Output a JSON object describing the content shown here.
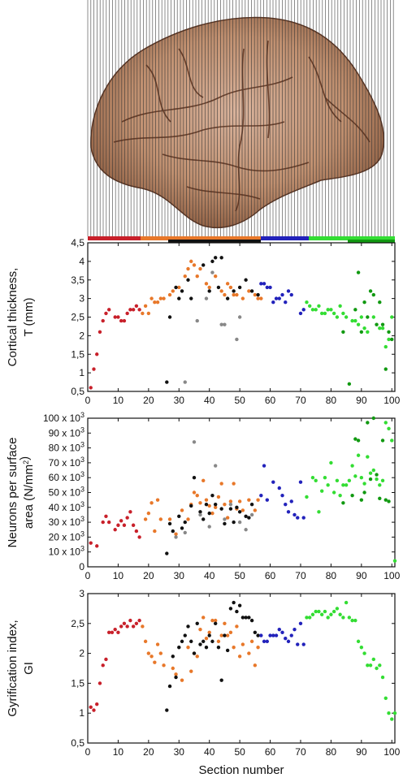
{
  "figure": {
    "image_caption": "Lateral view of a human brain hemisphere sectioned by vertical lines",
    "region_bar_colors": [
      "#c8202a",
      "#e8782a",
      "#111111",
      "#2222bb",
      "#33dd33",
      "#119911"
    ]
  },
  "chart_data": [
    {
      "type": "scatter",
      "ylabel": "Cortical thickness,\nT (mm)",
      "xlabel": "",
      "xlim": [
        0,
        101
      ],
      "ylim": [
        0.5,
        4.5
      ],
      "xticks": [
        "0",
        "10",
        "20",
        "30",
        "40",
        "50",
        "60",
        "70",
        "80",
        "90",
        "100"
      ],
      "yticks": [
        "0,5",
        "1",
        "1,5",
        "2",
        "2,5",
        "3",
        "3,5",
        "4",
        "4,5"
      ],
      "series": [
        {
          "color": "#c8202a",
          "x": [
            1,
            2,
            3,
            4,
            5,
            6,
            7,
            9,
            10,
            11,
            12,
            13,
            14,
            15,
            16,
            17
          ],
          "y": [
            0.6,
            1.1,
            1.5,
            2.1,
            2.4,
            2.6,
            2.7,
            2.5,
            2.5,
            2.4,
            2.4,
            2.6,
            2.7,
            2.7,
            2.8,
            2.7
          ]
        },
        {
          "color": "#e8782a",
          "x": [
            18,
            19,
            20,
            21,
            22,
            23,
            24,
            25,
            27,
            28,
            30,
            32,
            33,
            34,
            35,
            36,
            37,
            39,
            40,
            42,
            44,
            45,
            46,
            47,
            48,
            49,
            51,
            53,
            55,
            56,
            57
          ],
          "y": [
            2.6,
            2.8,
            2.6,
            3.0,
            2.9,
            2.9,
            3.0,
            3.0,
            3.1,
            3.2,
            3.3,
            3.6,
            3.8,
            4.0,
            3.9,
            3.6,
            3.8,
            3.4,
            3.3,
            3.6,
            3.2,
            3.1,
            3.4,
            3.3,
            3.1,
            3.1,
            3.0,
            3.2,
            3.1,
            3.0,
            3.0
          ]
        },
        {
          "color": "#111111",
          "x": [
            26,
            27,
            29,
            30,
            31,
            33,
            34,
            38,
            40,
            41,
            42,
            43,
            44,
            46,
            48,
            50,
            52,
            54,
            56
          ],
          "y": [
            0.75,
            2.5,
            3.3,
            3.0,
            3.2,
            3.5,
            3.0,
            3.9,
            3.2,
            4.0,
            4.1,
            3.3,
            4.1,
            3.0,
            3.2,
            3.3,
            3.5,
            3.2,
            3.1
          ]
        },
        {
          "color": "#888888",
          "x": [
            32,
            36,
            39,
            41,
            44,
            45,
            49,
            50
          ],
          "y": [
            0.75,
            2.4,
            3.0,
            3.7,
            2.3,
            2.3,
            1.9,
            2.5
          ]
        },
        {
          "color": "#2222bb",
          "x": [
            57,
            58,
            59,
            60,
            61,
            62,
            63,
            64,
            65,
            66,
            67,
            70,
            71
          ],
          "y": [
            3.4,
            3.4,
            3.3,
            3.3,
            2.9,
            3.0,
            3.0,
            3.1,
            2.9,
            3.2,
            3.1,
            2.6,
            2.7
          ]
        },
        {
          "color": "#33dd33",
          "x": [
            72,
            73,
            74,
            75,
            76,
            77,
            78,
            79,
            80,
            81,
            82,
            83,
            84,
            85,
            87,
            88,
            89,
            90,
            91,
            92,
            94,
            96,
            97,
            98,
            99,
            100
          ],
          "y": [
            2.9,
            2.8,
            2.7,
            2.7,
            2.8,
            2.6,
            2.6,
            2.7,
            2.7,
            2.6,
            2.5,
            2.8,
            2.6,
            2.5,
            2.4,
            2.4,
            2.3,
            2.5,
            2.2,
            2.1,
            2.5,
            2.2,
            2.2,
            1.7,
            1.9,
            2.5
          ]
        },
        {
          "color": "#119911",
          "x": [
            84,
            86,
            88,
            89,
            90,
            91,
            92,
            93,
            94,
            95,
            96,
            97,
            98,
            99,
            100
          ],
          "y": [
            2.1,
            0.7,
            2.7,
            3.7,
            2.1,
            2.9,
            2.5,
            3.2,
            3.1,
            2.3,
            2.9,
            2.3,
            1.1,
            2.1,
            1.9
          ]
        }
      ]
    },
    {
      "type": "scatter",
      "ylabel": "Neurons per surface\narea (N/mm²)",
      "xlabel": "",
      "xlim": [
        0,
        101
      ],
      "ylim": [
        0,
        100000
      ],
      "xticks": [
        "0",
        "10",
        "20",
        "30",
        "40",
        "50",
        "60",
        "70",
        "80",
        "90",
        "100"
      ],
      "yticks": [
        "0",
        "10 x 10³",
        "20 x 10³",
        "30 x 10³",
        "40 x 10³",
        "50 x 10³",
        "60 x 10³",
        "70 x 10³",
        "80 x 10³",
        "90 x 10³",
        "100 x 10³"
      ],
      "series": [
        {
          "color": "#c8202a",
          "x": [
            1,
            3,
            5,
            6,
            7,
            9,
            10,
            11,
            12,
            13,
            14,
            15,
            16,
            17
          ],
          "y": [
            16000,
            14000,
            30000,
            34000,
            30000,
            25000,
            28000,
            31000,
            28000,
            33000,
            37000,
            28000,
            24000,
            20000
          ],
          "name": ""
        },
        {
          "color": "#e8782a",
          "x": [
            19,
            20,
            21,
            22,
            23,
            24,
            27,
            29,
            31,
            33,
            34,
            35,
            36,
            37,
            38,
            39,
            40,
            41,
            42,
            43,
            44,
            45,
            46,
            47,
            48,
            49,
            50,
            51,
            53,
            55,
            56
          ],
          "y": [
            32000,
            36000,
            43000,
            24000,
            45000,
            32000,
            32000,
            22000,
            38000,
            32000,
            42000,
            50000,
            48000,
            43000,
            58000,
            45000,
            41000,
            36000,
            40000,
            47000,
            56000,
            42000,
            33000,
            44000,
            56000,
            39000,
            44000,
            38000,
            45000,
            38000,
            45000
          ],
          "name": ""
        },
        {
          "color": "#111111",
          "x": [
            26,
            27,
            28,
            30,
            31,
            32,
            34,
            35,
            37,
            38,
            39,
            40,
            41,
            42,
            44,
            45,
            47,
            48,
            49,
            50,
            52,
            53,
            54
          ],
          "y": [
            9000,
            29000,
            24000,
            34000,
            26000,
            30000,
            41000,
            60000,
            37000,
            32000,
            42000,
            36000,
            48000,
            42000,
            39000,
            29000,
            39000,
            30000,
            40000,
            37000,
            34000,
            33000,
            42000
          ],
          "name": ""
        },
        {
          "color": "#888888",
          "x": [
            29,
            32,
            35,
            37,
            40,
            42,
            45,
            47,
            50,
            52,
            54
          ],
          "y": [
            20000,
            23000,
            84000,
            35000,
            27000,
            68000,
            32000,
            42000,
            30000,
            25000,
            35000
          ],
          "name": ""
        },
        {
          "color": "#2222bb",
          "x": [
            57,
            58,
            59,
            61,
            63,
            64,
            65,
            66,
            67,
            68,
            69,
            70,
            71
          ],
          "y": [
            48000,
            68000,
            45000,
            57000,
            53000,
            48000,
            42000,
            37000,
            44000,
            35000,
            33000,
            57000,
            33000
          ],
          "name": ""
        },
        {
          "color": "#33dd33",
          "x": [
            72,
            74,
            75,
            76,
            77,
            78,
            79,
            80,
            81,
            82,
            83,
            84,
            85,
            86,
            87,
            88,
            89,
            90,
            91,
            92,
            93,
            94,
            95,
            96,
            97,
            98,
            99,
            100,
            101
          ],
          "y": [
            47000,
            60000,
            58000,
            37000,
            51000,
            60000,
            55000,
            70000,
            50000,
            58000,
            48000,
            55000,
            55000,
            58000,
            68000,
            61000,
            75000,
            60000,
            56000,
            74000,
            63000,
            65000,
            59000,
            55000,
            58000,
            97000,
            93000,
            85000,
            4000
          ],
          "name": ""
        },
        {
          "color": "#119911",
          "x": [
            84,
            87,
            88,
            89,
            90,
            91,
            92,
            93,
            94,
            95,
            96,
            97,
            98,
            99
          ],
          "y": [
            43000,
            48000,
            86000,
            85000,
            45000,
            50000,
            97000,
            59000,
            100000,
            62000,
            46000,
            85000,
            45000,
            44000
          ],
          "name": ""
        }
      ]
    },
    {
      "type": "scatter",
      "ylabel": "Gyrification index,\nGI",
      "xlabel": "Section number",
      "xlim": [
        0,
        101
      ],
      "ylim": [
        0.5,
        3
      ],
      "xticks": [
        "0",
        "10",
        "20",
        "30",
        "40",
        "50",
        "60",
        "70",
        "80",
        "90",
        "100"
      ],
      "yticks": [
        "0,5",
        "1",
        "1,5",
        "2",
        "2,5",
        "3"
      ],
      "series": [
        {
          "color": "#c8202a",
          "x": [
            1,
            2,
            3,
            4,
            5,
            6,
            7,
            8,
            9,
            10,
            11,
            12,
            13,
            14,
            15,
            16,
            17
          ],
          "y": [
            1.1,
            1.05,
            1.15,
            1.5,
            1.8,
            1.9,
            2.35,
            2.35,
            2.4,
            2.35,
            2.45,
            2.5,
            2.45,
            2.55,
            2.45,
            2.5,
            2.55
          ],
          "name": ""
        },
        {
          "color": "#e8782a",
          "x": [
            18,
            19,
            20,
            21,
            22,
            23,
            24,
            25,
            28,
            29,
            31,
            33,
            34,
            35,
            36,
            37,
            38,
            39,
            40,
            41,
            42,
            43,
            44,
            45,
            46,
            47,
            48,
            49,
            50,
            51,
            53,
            54,
            55,
            56
          ],
          "y": [
            2.45,
            2.2,
            2.0,
            1.95,
            1.85,
            2.15,
            2.0,
            1.8,
            1.75,
            1.65,
            1.55,
            2.1,
            1.7,
            2.0,
            1.95,
            2.4,
            2.6,
            2.25,
            2.35,
            2.55,
            2.55,
            2.2,
            2.3,
            2.5,
            2.3,
            2.35,
            2.1,
            2.45,
            1.95,
            2.15,
            2.0,
            2.2,
            1.8,
            2.1
          ],
          "name": ""
        },
        {
          "color": "#111111",
          "x": [
            26,
            27,
            28,
            29,
            30,
            31,
            32,
            33,
            34,
            35,
            36,
            37,
            38,
            39,
            40,
            41,
            42,
            43,
            44,
            45,
            46,
            47,
            48,
            49,
            50,
            51,
            52,
            53,
            54,
            55,
            56
          ],
          "y": [
            1.05,
            1.45,
            1.95,
            1.6,
            2.1,
            2.2,
            2.3,
            2.45,
            2.2,
            2.0,
            2.5,
            2.15,
            2.2,
            2.1,
            2.3,
            2.2,
            2.5,
            2.1,
            1.55,
            2.3,
            2.05,
            2.75,
            2.85,
            2.7,
            2.8,
            2.6,
            2.6,
            2.6,
            2.55,
            2.35,
            2.3
          ],
          "name": ""
        },
        {
          "color": "#2222bb",
          "x": [
            57,
            58,
            59,
            60,
            61,
            62,
            63,
            64,
            65,
            66,
            67,
            68,
            69,
            70,
            71
          ],
          "y": [
            2.3,
            2.2,
            2.2,
            2.3,
            2.3,
            2.3,
            2.4,
            2.35,
            2.25,
            2.2,
            2.3,
            2.4,
            2.15,
            2.5,
            2.15
          ],
          "name": ""
        },
        {
          "color": "#33dd33",
          "x": [
            72,
            73,
            74,
            75,
            76,
            77,
            78,
            79,
            80,
            81,
            82,
            83,
            84,
            85,
            86,
            87,
            88,
            89,
            90,
            91,
            92,
            93,
            94,
            95,
            96,
            97,
            98,
            99,
            100,
            101
          ],
          "y": [
            2.6,
            2.6,
            2.65,
            2.7,
            2.7,
            2.65,
            2.7,
            2.6,
            2.65,
            2.7,
            2.75,
            2.65,
            2.6,
            2.85,
            2.6,
            2.55,
            2.55,
            2.2,
            2.1,
            2.0,
            1.8,
            1.8,
            1.9,
            1.75,
            1.8,
            1.6,
            1.25,
            1.0,
            0.9,
            1.0
          ],
          "name": ""
        }
      ]
    }
  ]
}
